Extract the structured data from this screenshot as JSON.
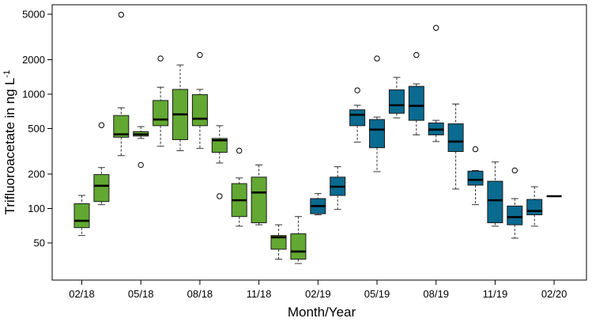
{
  "chart_data": {
    "type": "box",
    "xlabel": "Month/Year",
    "ylabel_main": "Trifluoroacetate in ng L",
    "ylabel_sup": "-1",
    "yscale": "log",
    "ylim": [
      30,
      5700
    ],
    "y_ticks": [
      {
        "value": 50,
        "label": "50"
      },
      {
        "value": 100,
        "label": "100"
      },
      {
        "value": 200,
        "label": "200"
      },
      {
        "value": 500,
        "label": "500"
      },
      {
        "value": 1000,
        "label": "1000"
      },
      {
        "value": 2000,
        "label": "2000"
      },
      {
        "value": 5000,
        "label": "5000"
      }
    ],
    "x_ticks": [
      {
        "index": 1,
        "label": "02/18"
      },
      {
        "index": 4,
        "label": "05/18"
      },
      {
        "index": 7,
        "label": "08/18"
      },
      {
        "index": 10,
        "label": "11/18"
      },
      {
        "index": 13,
        "label": "02/19"
      },
      {
        "index": 16,
        "label": "05/19"
      },
      {
        "index": 19,
        "label": "08/19"
      },
      {
        "index": 22,
        "label": "11/19"
      },
      {
        "index": 25,
        "label": "02/20"
      }
    ],
    "colors": {
      "green": "#62a832",
      "blue": "#0a6a8f",
      "whisker": "#333333",
      "median": "#000000"
    },
    "boxes": [
      {
        "index": 1,
        "color": "green",
        "min": 58,
        "q1": 68,
        "median": 78,
        "q3": 110,
        "max": 130,
        "outliers": []
      },
      {
        "index": 2,
        "color": "green",
        "min": 108,
        "q1": 115,
        "median": 158,
        "q3": 198,
        "max": 228,
        "outliers": [
          535
        ]
      },
      {
        "index": 3,
        "color": "green",
        "min": 290,
        "q1": 420,
        "median": 445,
        "q3": 650,
        "max": 760,
        "outliers": [
          4950
        ]
      },
      {
        "index": 4,
        "color": "green",
        "min": 410,
        "q1": 430,
        "median": 445,
        "q3": 470,
        "max": 520,
        "outliers": [
          240
        ]
      },
      {
        "index": 5,
        "color": "green",
        "min": 350,
        "q1": 530,
        "median": 600,
        "q3": 880,
        "max": 1150,
        "outliers": [
          2050
        ]
      },
      {
        "index": 6,
        "color": "green",
        "min": 320,
        "q1": 400,
        "median": 665,
        "q3": 1100,
        "max": 1800,
        "outliers": []
      },
      {
        "index": 7,
        "color": "green",
        "min": 335,
        "q1": 530,
        "median": 610,
        "q3": 990,
        "max": 1100,
        "outliers": [
          2200
        ]
      },
      {
        "index": 8,
        "color": "green",
        "min": 250,
        "q1": 310,
        "median": 395,
        "q3": 410,
        "max": 530,
        "outliers": [
          128
        ]
      },
      {
        "index": 9,
        "color": "green",
        "min": 70,
        "q1": 85,
        "median": 118,
        "q3": 165,
        "max": 185,
        "outliers": [
          320
        ]
      },
      {
        "index": 10,
        "color": "green",
        "min": 72,
        "q1": 75,
        "median": 138,
        "q3": 188,
        "max": 240,
        "outliers": []
      },
      {
        "index": 11,
        "color": "green",
        "min": 36,
        "q1": 44,
        "median": 56,
        "q3": 58,
        "max": 72,
        "outliers": []
      },
      {
        "index": 12,
        "color": "green",
        "min": 33,
        "q1": 36,
        "median": 42,
        "q3": 60,
        "max": 85,
        "outliers": []
      },
      {
        "index": 13,
        "color": "blue",
        "min": 88,
        "q1": 90,
        "median": 105,
        "q3": 122,
        "max": 135,
        "outliers": []
      },
      {
        "index": 14,
        "color": "blue",
        "min": 98,
        "q1": 130,
        "median": 155,
        "q3": 188,
        "max": 232,
        "outliers": []
      },
      {
        "index": 15,
        "color": "blue",
        "min": 380,
        "q1": 530,
        "median": 660,
        "q3": 730,
        "max": 800,
        "outliers": [
          1080
        ]
      },
      {
        "index": 16,
        "color": "blue",
        "min": 210,
        "q1": 340,
        "median": 490,
        "q3": 600,
        "max": 630,
        "outliers": [
          2050
        ]
      },
      {
        "index": 17,
        "color": "blue",
        "min": 620,
        "q1": 680,
        "median": 800,
        "q3": 1090,
        "max": 1400,
        "outliers": []
      },
      {
        "index": 18,
        "color": "blue",
        "min": 440,
        "q1": 590,
        "median": 790,
        "q3": 1170,
        "max": 1230,
        "outliers": [
          2200
        ]
      },
      {
        "index": 19,
        "color": "blue",
        "min": 385,
        "q1": 440,
        "median": 490,
        "q3": 560,
        "max": 590,
        "outliers": [
          3800
        ]
      },
      {
        "index": 20,
        "color": "blue",
        "min": 148,
        "q1": 315,
        "median": 385,
        "q3": 550,
        "max": 820,
        "outliers": []
      },
      {
        "index": 21,
        "color": "blue",
        "min": 108,
        "q1": 160,
        "median": 178,
        "q3": 212,
        "max": 215,
        "outliers": [
          330
        ]
      },
      {
        "index": 22,
        "color": "blue",
        "min": 70,
        "q1": 75,
        "median": 118,
        "q3": 173,
        "max": 255,
        "outliers": []
      },
      {
        "index": 23,
        "color": "blue",
        "min": 55,
        "q1": 72,
        "median": 84,
        "q3": 105,
        "max": 122,
        "outliers": [
          215
        ]
      },
      {
        "index": 24,
        "color": "blue",
        "min": 70,
        "q1": 88,
        "median": 95,
        "q3": 120,
        "max": 155,
        "outliers": []
      },
      {
        "index": 25,
        "color": "blue",
        "min": 128,
        "q1": 128,
        "median": 128,
        "q3": 128,
        "max": 128,
        "outliers": []
      }
    ]
  }
}
